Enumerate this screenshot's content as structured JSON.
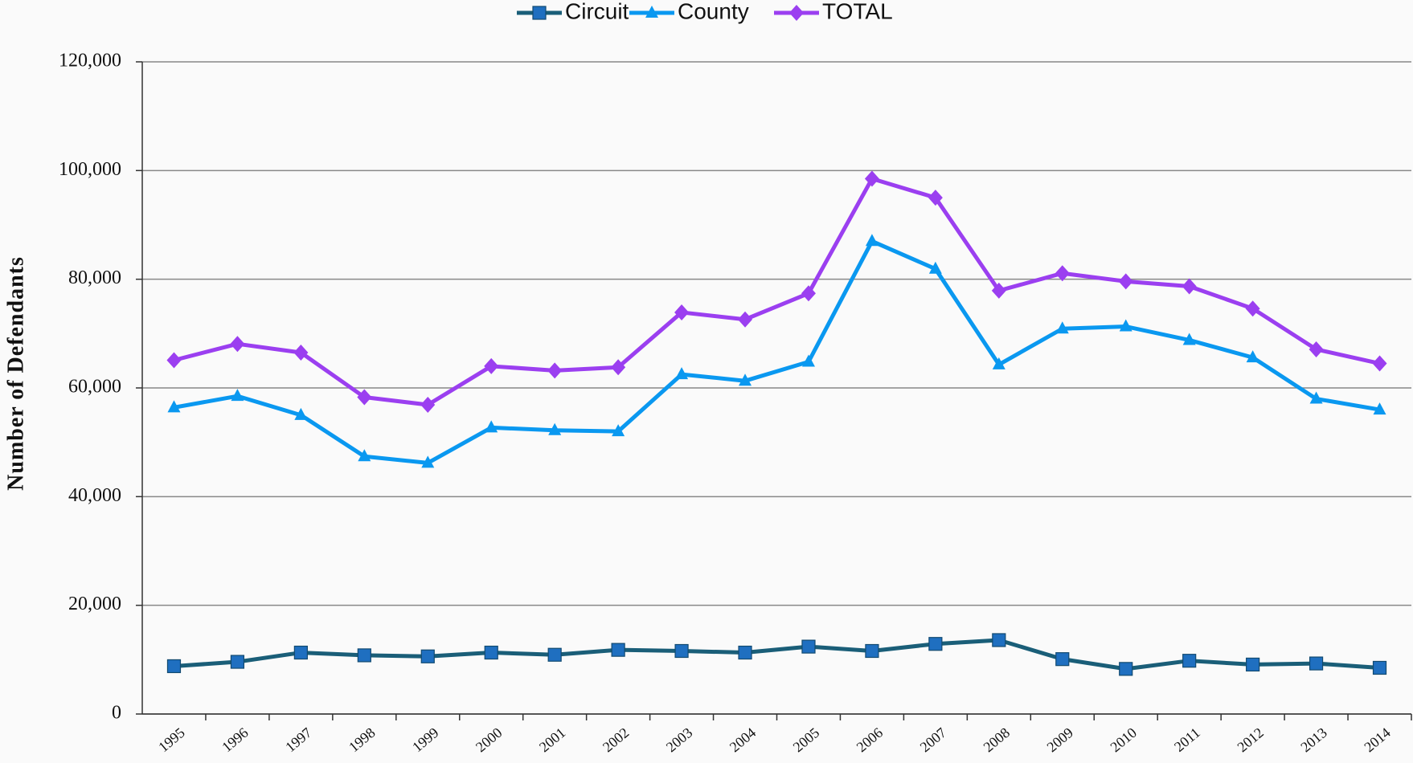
{
  "chart_data": {
    "type": "line",
    "ylabel": "Number of Defendants",
    "categories": [
      "1995",
      "1996",
      "1997",
      "1998",
      "1999",
      "2000",
      "2001",
      "2002",
      "2003",
      "2004",
      "2005",
      "2006",
      "2007",
      "2008",
      "2009",
      "2010",
      "2011",
      "2012",
      "2013",
      "2014"
    ],
    "series": [
      {
        "name": "Circuit",
        "color": "#1a5e78",
        "marker_color": "#1f6fc0",
        "marker": "square",
        "values": [
          8800,
          9600,
          11300,
          10800,
          10600,
          11300,
          10900,
          11800,
          11600,
          11300,
          12400,
          11600,
          12900,
          13600,
          10100,
          8300,
          9800,
          9100,
          9300,
          8500
        ]
      },
      {
        "name": "County",
        "color": "#0a98f0",
        "marker_color": "#0a98f0",
        "marker": "triangle",
        "values": [
          56400,
          58500,
          55000,
          47400,
          46200,
          52700,
          52200,
          52000,
          62500,
          61300,
          64800,
          87000,
          81900,
          64300,
          70900,
          71300,
          68800,
          65600,
          58000,
          56000
        ]
      },
      {
        "name": "TOTAL",
        "color": "#9b3ff0",
        "marker_color": "#9b3ff0",
        "marker": "diamond",
        "values": [
          65100,
          68100,
          66500,
          58300,
          56900,
          64000,
          63200,
          63800,
          73900,
          72600,
          77400,
          98500,
          95000,
          77900,
          81100,
          79600,
          78700,
          74600,
          67100,
          64500
        ]
      }
    ],
    "ylim": [
      0,
      120000
    ],
    "yticks": [
      0,
      {
        "value": 20000,
        "label": "20,000"
      },
      {
        "value": 40000,
        "label": "40,000"
      },
      {
        "value": 60000,
        "label": "60,000"
      },
      {
        "value": 80000,
        "label": "80,000"
      },
      {
        "value": 100000,
        "label": "100,000"
      },
      {
        "value": 120000,
        "label": "120,000"
      }
    ],
    "grid": true,
    "legend": "top"
  }
}
